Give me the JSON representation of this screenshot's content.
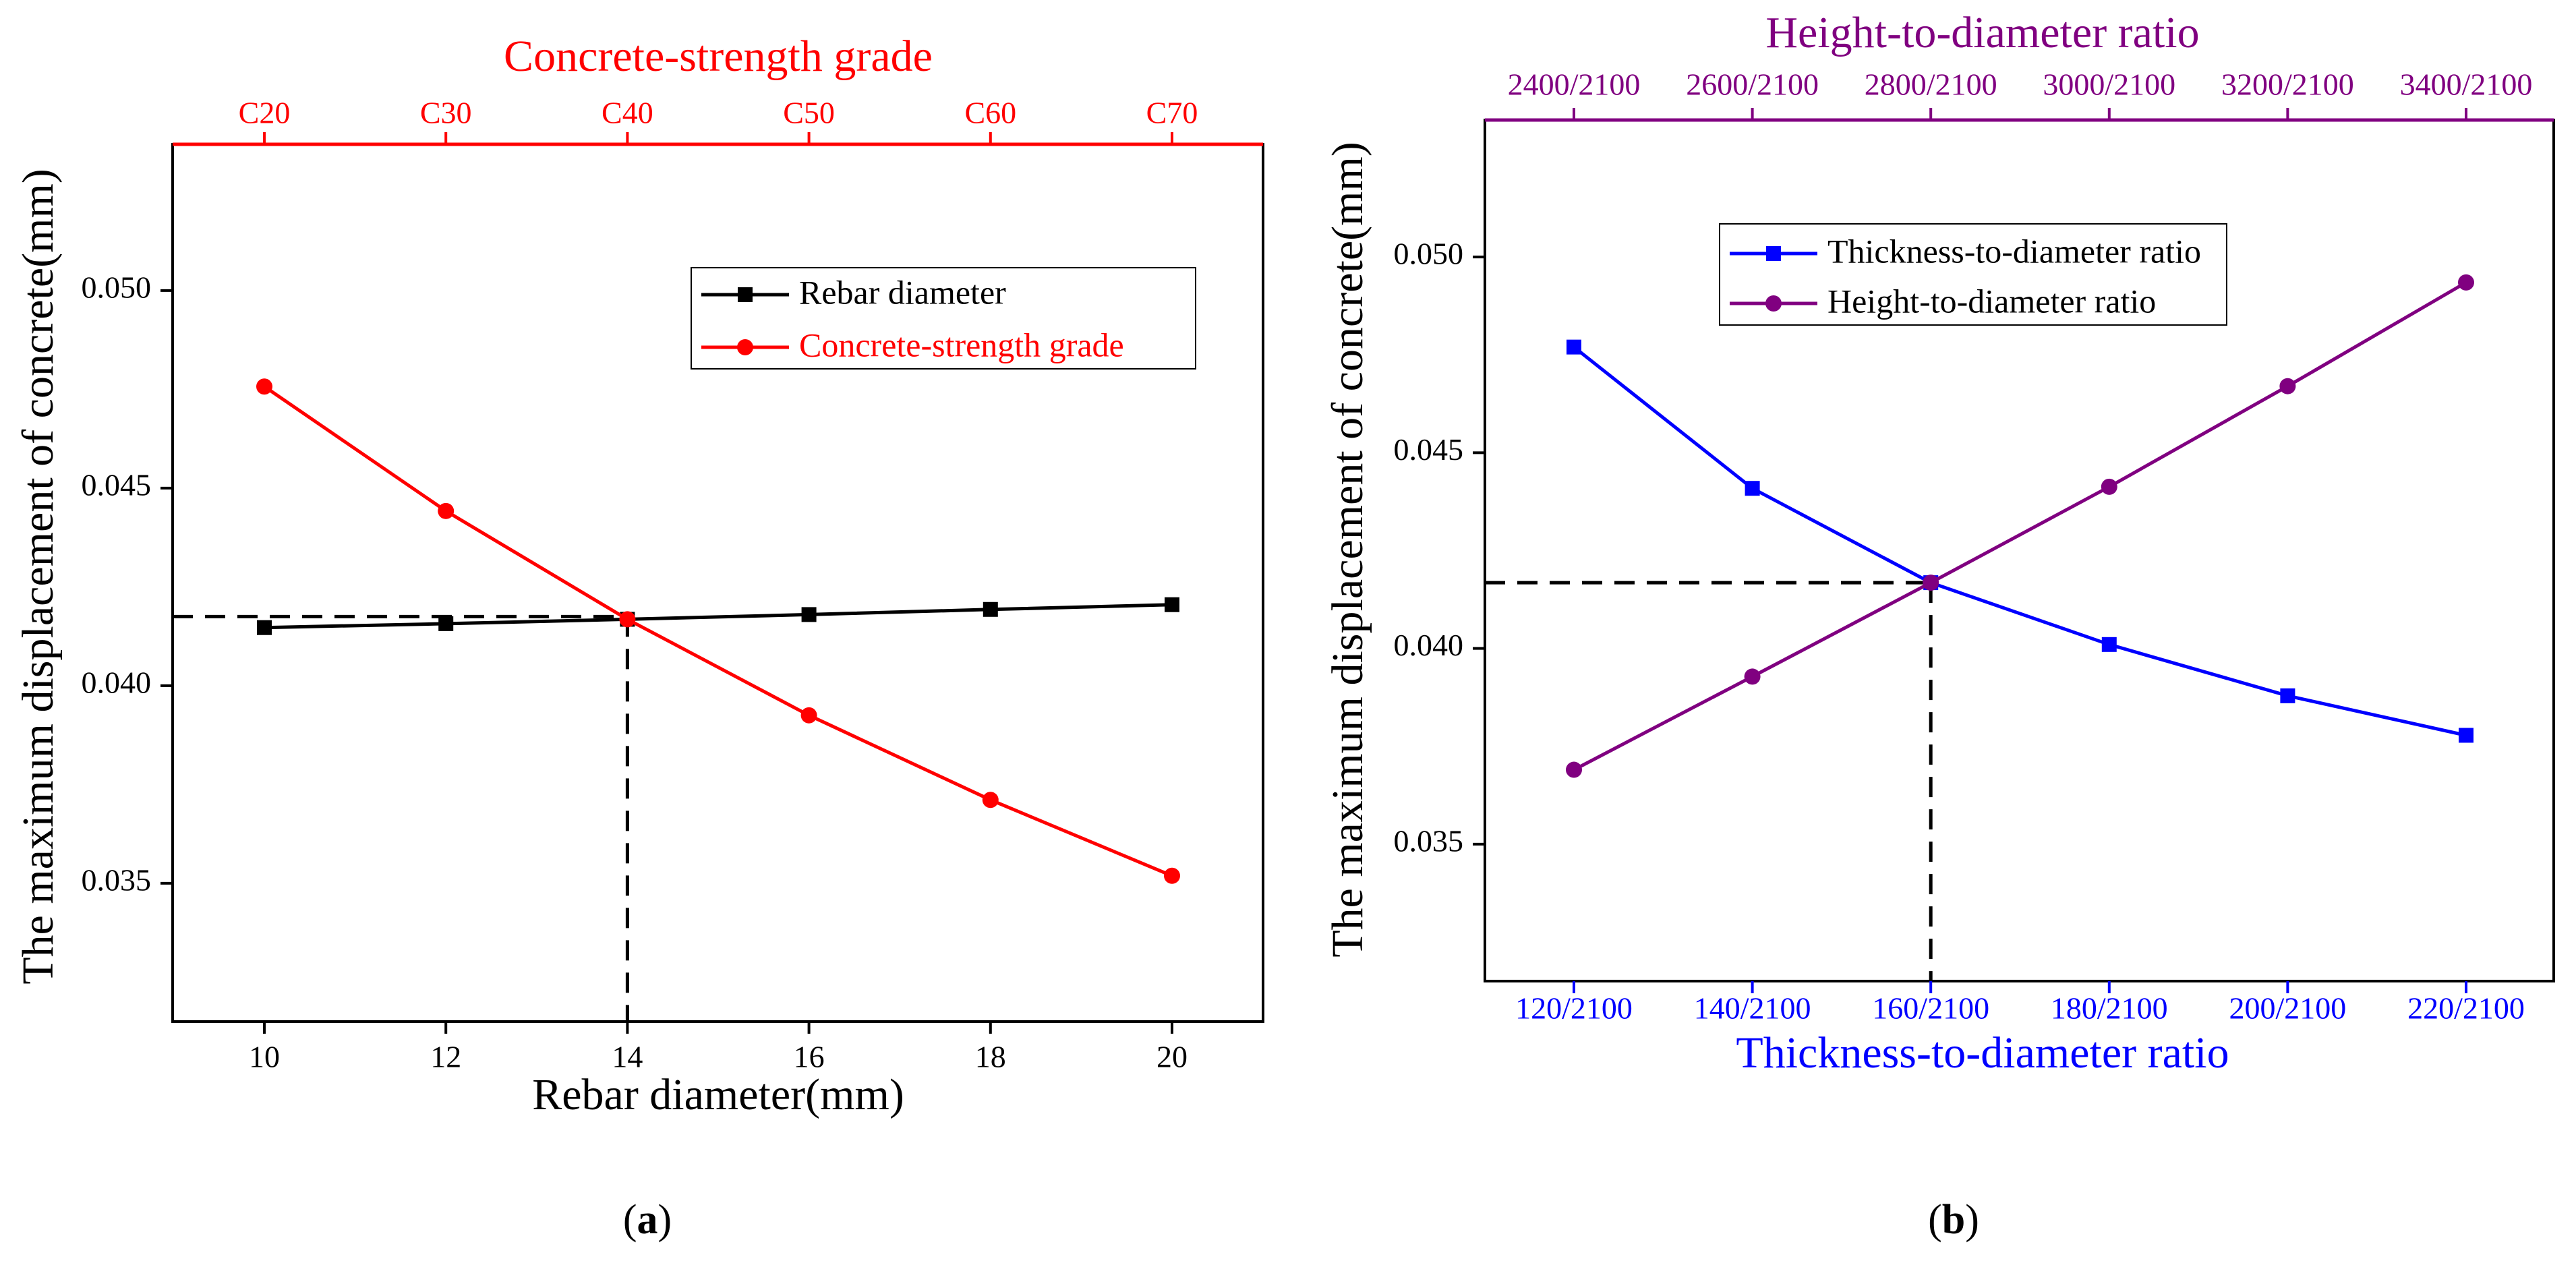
{
  "colors": {
    "black": "#000000",
    "red": "#ff0000",
    "blue": "#0000ff",
    "purple": "#800080"
  },
  "chart_data": [
    {
      "panel": "(a)",
      "panel_text": {
        "open": "(",
        "letter": "a",
        "close": ")"
      },
      "type": "line",
      "x": [
        10,
        12,
        14,
        16,
        18,
        20
      ],
      "xlim": [
        9,
        21
      ],
      "xticks": [
        10,
        12,
        14,
        16,
        18,
        20
      ],
      "xtick_labels": [
        "10",
        "12",
        "14",
        "16",
        "18",
        "20"
      ],
      "xlabel": "Rebar diameter(mm)",
      "top_xlabel": "Concrete-strength grade",
      "top_xtick_labels": [
        "C20",
        "C30",
        "C40",
        "C50",
        "C60",
        "C70"
      ],
      "ylabel": "The maximum displacement of concrete(mm)",
      "ylim": [
        0.0315,
        0.0537
      ],
      "yticks": [
        0.035,
        0.04,
        0.045,
        0.05
      ],
      "ytick_labels": [
        "0.035",
        "0.040",
        "0.045",
        "0.050"
      ],
      "series": [
        {
          "name": "Rebar diameter",
          "color": "#000000",
          "marker": "square",
          "axis": "bottom",
          "values": [
            0.04147,
            0.04157,
            0.04168,
            0.0418,
            0.04193,
            0.04205
          ]
        },
        {
          "name": "Concrete-strength grade",
          "color": "#ff0000",
          "marker": "circle",
          "axis": "top",
          "values": [
            0.04757,
            0.04442,
            0.04168,
            0.03925,
            0.03711,
            0.03519
          ]
        }
      ],
      "reference_lines": {
        "y": 0.04175,
        "x": 14,
        "style": "dashed"
      },
      "legend": "top-right"
    },
    {
      "panel": "(b)",
      "panel_text": {
        "open": "(",
        "letter": "b",
        "close": ")"
      },
      "type": "line",
      "x": [
        120,
        140,
        160,
        180,
        200,
        220
      ],
      "xlim": [
        110,
        230
      ],
      "xticks": [
        120,
        140,
        160,
        180,
        200,
        220
      ],
      "xtick_labels": [
        "120/2100",
        "140/2100",
        "160/2100",
        "180/2100",
        "200/2100",
        "220/2100"
      ],
      "xlabel": "Thickness-to-diameter ratio",
      "top_xlabel": "Height-to-diameter ratio",
      "top_xtick_labels": [
        "2400/2100",
        "2600/2100",
        "2800/2100",
        "3000/2100",
        "3200/2100",
        "3400/2100"
      ],
      "ylabel": "The maximum displacement of concrete(mm)",
      "ylim": [
        0.0315,
        0.0535
      ],
      "yticks": [
        0.035,
        0.04,
        0.045,
        0.05
      ],
      "ytick_labels": [
        "0.035",
        "0.040",
        "0.045",
        "0.050"
      ],
      "series": [
        {
          "name": "Thickness-to-diameter ratio",
          "color": "#0000ff",
          "marker": "square",
          "axis": "bottom",
          "values": [
            0.0477,
            0.04409,
            0.04168,
            0.0401,
            0.03879,
            0.03778
          ]
        },
        {
          "name": "Height-to-diameter ratio",
          "color": "#800080",
          "marker": "circle",
          "axis": "top",
          "values": [
            0.0369,
            0.03928,
            0.04168,
            0.04413,
            0.0467,
            0.04935
          ]
        }
      ],
      "reference_lines": {
        "y": 0.04168,
        "x": 160,
        "style": "dashed"
      },
      "legend": "top-center"
    }
  ]
}
